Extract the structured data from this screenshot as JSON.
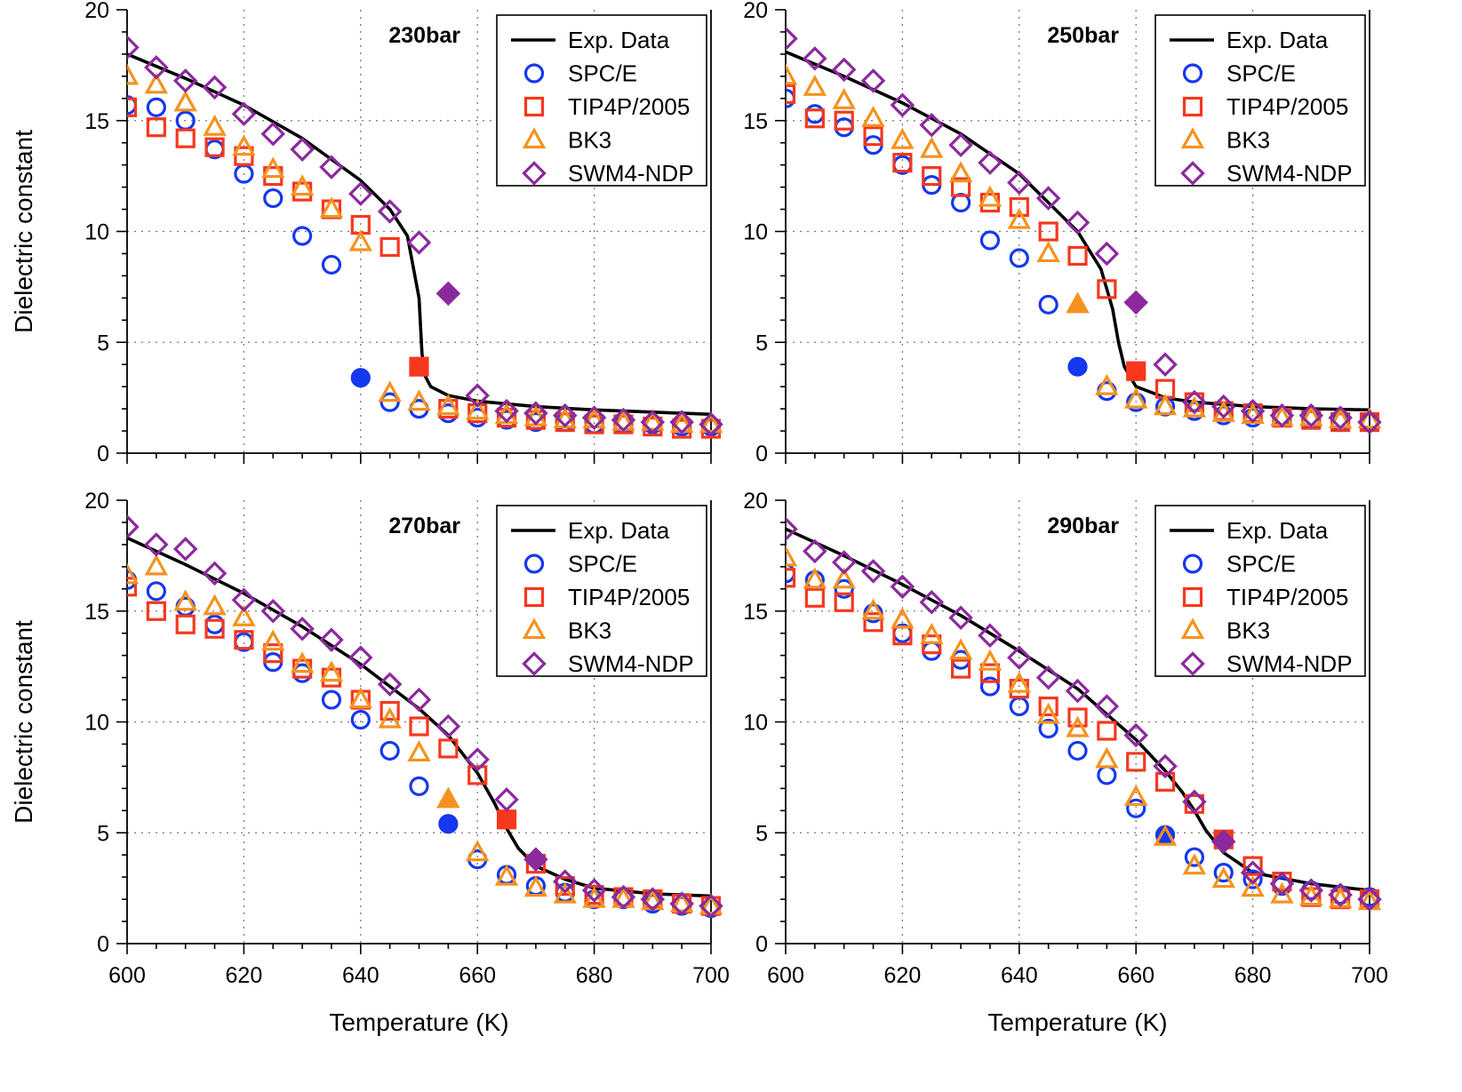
{
  "figure": {
    "x_axis_title": "Temperature (K)",
    "y_axis_title": "Dielectric constant"
  },
  "legend": {
    "entries": [
      {
        "key": "exp",
        "label": "Exp. Data"
      },
      {
        "key": "spce",
        "label": "SPC/E"
      },
      {
        "key": "tip4p",
        "label": "TIP4P/2005"
      },
      {
        "key": "bk3",
        "label": "BK3"
      },
      {
        "key": "swm4",
        "label": "SWM4-NDP"
      }
    ]
  },
  "colors": {
    "exp": "#000000",
    "spce": "#1538f0",
    "tip4p": "#f5381e",
    "bk3": "#f5921e",
    "swm4": "#8b2a9c"
  },
  "chart_data": [
    {
      "type": "scatter",
      "title": "230bar",
      "xlabel": "Temperature (K)",
      "ylabel": "Dielectric constant",
      "xlim": [
        600,
        700
      ],
      "ylim": [
        0,
        20
      ],
      "xticks": [
        600,
        620,
        640,
        660,
        680,
        700
      ],
      "yticks": [
        0,
        5,
        10,
        15,
        20
      ],
      "exp_line": {
        "x": [
          600,
          610,
          620,
          630,
          640,
          645,
          648,
          650,
          650.5,
          651,
          652,
          655,
          660,
          670,
          680,
          690,
          700
        ],
        "y": [
          18.0,
          16.9,
          15.7,
          14.2,
          12.3,
          11.0,
          9.8,
          7.0,
          4.5,
          3.5,
          3.0,
          2.6,
          2.35,
          2.1,
          1.95,
          1.85,
          1.75
        ]
      },
      "series": [
        {
          "name": "SPC/E",
          "x": [
            600,
            605,
            610,
            615,
            620,
            625,
            630,
            635,
            640,
            645,
            650,
            655,
            660,
            665,
            670,
            675,
            680,
            685,
            690,
            695,
            700
          ],
          "y": [
            15.7,
            15.6,
            15.0,
            13.7,
            12.6,
            11.5,
            9.8,
            8.5,
            3.4,
            2.3,
            2.0,
            1.8,
            1.6,
            1.5,
            1.4,
            1.4,
            1.3,
            1.3,
            1.3,
            1.2,
            1.2
          ],
          "filled_x": [
            640
          ]
        },
        {
          "name": "TIP4P/2005",
          "x": [
            600,
            605,
            610,
            615,
            620,
            625,
            630,
            635,
            640,
            645,
            650,
            655,
            660,
            665,
            670,
            675,
            680,
            685,
            690,
            695,
            700
          ],
          "y": [
            15.6,
            14.7,
            14.2,
            13.8,
            13.4,
            12.5,
            11.8,
            11.0,
            10.3,
            9.3,
            3.9,
            2.0,
            1.8,
            1.6,
            1.5,
            1.4,
            1.3,
            1.3,
            1.2,
            1.1,
            1.1
          ],
          "filled_x": [
            650
          ]
        },
        {
          "name": "BK3",
          "x": [
            600,
            605,
            610,
            615,
            620,
            625,
            630,
            635,
            640,
            645,
            650,
            655,
            660,
            665,
            670,
            675,
            680,
            685,
            690,
            695,
            700
          ],
          "y": [
            17.0,
            16.6,
            15.8,
            14.7,
            13.8,
            12.8,
            12.0,
            11.0,
            9.5,
            2.7,
            2.3,
            2.1,
            1.9,
            1.7,
            1.6,
            1.5,
            1.5,
            1.4,
            1.4,
            1.3,
            1.3
          ],
          "filled_x": []
        },
        {
          "name": "SWM4-NDP",
          "x": [
            600,
            605,
            610,
            615,
            620,
            625,
            630,
            635,
            640,
            645,
            650,
            655,
            660,
            665,
            670,
            675,
            680,
            685,
            690,
            695,
            700
          ],
          "y": [
            18.3,
            17.4,
            16.8,
            16.5,
            15.3,
            14.4,
            13.7,
            12.9,
            11.7,
            10.9,
            9.5,
            7.2,
            2.6,
            1.9,
            1.8,
            1.7,
            1.6,
            1.5,
            1.4,
            1.4,
            1.3
          ],
          "filled_x": [
            655
          ]
        }
      ]
    },
    {
      "type": "scatter",
      "title": "250bar",
      "xlabel": "Temperature (K)",
      "ylabel": "Dielectric constant",
      "xlim": [
        600,
        700
      ],
      "ylim": [
        0,
        20
      ],
      "xticks": [
        600,
        620,
        640,
        660,
        680,
        700
      ],
      "yticks": [
        0,
        5,
        10,
        15,
        20
      ],
      "exp_line": {
        "x": [
          600,
          610,
          620,
          630,
          640,
          645,
          650,
          654,
          656,
          657,
          658,
          660,
          665,
          670,
          680,
          690,
          700
        ],
        "y": [
          18.1,
          17.0,
          15.8,
          14.4,
          12.6,
          11.3,
          10.0,
          8.3,
          6.5,
          5.0,
          3.9,
          3.0,
          2.5,
          2.3,
          2.1,
          2.0,
          1.95
        ]
      },
      "series": [
        {
          "name": "SPC/E",
          "x": [
            600,
            605,
            610,
            615,
            620,
            625,
            630,
            635,
            640,
            645,
            650,
            655,
            660,
            665,
            670,
            675,
            680,
            685,
            690,
            695,
            700
          ],
          "y": [
            16.0,
            15.3,
            14.7,
            13.9,
            13.0,
            12.1,
            11.3,
            9.6,
            8.8,
            6.7,
            3.9,
            2.8,
            2.3,
            2.1,
            1.9,
            1.7,
            1.6,
            1.6,
            1.5,
            1.4,
            1.4
          ],
          "filled_x": [
            650
          ]
        },
        {
          "name": "TIP4P/2005",
          "x": [
            600,
            605,
            610,
            615,
            620,
            625,
            630,
            635,
            640,
            645,
            650,
            655,
            660,
            665,
            670,
            675,
            680,
            685,
            690,
            695,
            700
          ],
          "y": [
            16.2,
            15.1,
            15.0,
            14.3,
            13.1,
            12.5,
            12.0,
            11.3,
            11.1,
            10.0,
            8.9,
            7.4,
            3.7,
            2.9,
            2.3,
            1.9,
            1.8,
            1.6,
            1.5,
            1.4,
            1.4
          ],
          "filled_x": [
            660
          ]
        },
        {
          "name": "BK3",
          "x": [
            600,
            605,
            610,
            615,
            620,
            625,
            630,
            635,
            640,
            645,
            650,
            655,
            660,
            665,
            670,
            675,
            680,
            685,
            690,
            695,
            700
          ],
          "y": [
            17.0,
            16.5,
            15.9,
            15.1,
            14.1,
            13.7,
            12.6,
            11.5,
            10.5,
            9.0,
            6.7,
            3.0,
            2.4,
            2.1,
            2.0,
            1.8,
            1.7,
            1.6,
            1.6,
            1.5,
            1.5
          ],
          "filled_x": [
            650
          ]
        },
        {
          "name": "SWM4-NDP",
          "x": [
            600,
            605,
            610,
            615,
            620,
            625,
            630,
            635,
            640,
            645,
            650,
            655,
            660,
            665,
            670,
            675,
            680,
            685,
            690,
            695,
            700
          ],
          "y": [
            18.7,
            17.8,
            17.3,
            16.8,
            15.7,
            14.8,
            13.9,
            13.1,
            12.2,
            11.5,
            10.4,
            9.0,
            6.8,
            4.0,
            2.3,
            2.1,
            1.9,
            1.7,
            1.7,
            1.6,
            1.4
          ],
          "filled_x": [
            660
          ]
        }
      ]
    },
    {
      "type": "scatter",
      "title": "270bar",
      "xlabel": "Temperature (K)",
      "ylabel": "Dielectric constant",
      "xlim": [
        600,
        700
      ],
      "ylim": [
        0,
        20
      ],
      "xticks": [
        600,
        620,
        640,
        660,
        680,
        700
      ],
      "yticks": [
        0,
        5,
        10,
        15,
        20
      ],
      "exp_line": {
        "x": [
          600,
          610,
          620,
          630,
          640,
          650,
          655,
          660,
          663,
          665,
          667,
          670,
          675,
          680,
          690,
          700
        ],
        "y": [
          18.3,
          17.1,
          15.8,
          14.3,
          12.6,
          10.6,
          9.4,
          7.7,
          6.3,
          5.2,
          4.3,
          3.5,
          2.9,
          2.5,
          2.25,
          2.15
        ]
      },
      "series": [
        {
          "name": "SPC/E",
          "x": [
            600,
            605,
            610,
            615,
            620,
            625,
            630,
            635,
            640,
            645,
            650,
            655,
            660,
            665,
            670,
            675,
            680,
            685,
            690,
            695,
            700
          ],
          "y": [
            16.4,
            15.9,
            15.2,
            14.4,
            13.6,
            12.7,
            12.2,
            11.0,
            10.1,
            8.7,
            7.1,
            5.4,
            3.8,
            3.1,
            2.6,
            2.3,
            2.0,
            2.0,
            1.8,
            1.7,
            1.6
          ],
          "filled_x": [
            655
          ]
        },
        {
          "name": "TIP4P/2005",
          "x": [
            600,
            605,
            610,
            615,
            620,
            625,
            630,
            635,
            640,
            645,
            650,
            655,
            660,
            665,
            670,
            675,
            680,
            685,
            690,
            695,
            700
          ],
          "y": [
            16.1,
            15.0,
            14.4,
            14.2,
            13.7,
            13.1,
            12.4,
            12.0,
            11.0,
            10.5,
            9.8,
            8.8,
            7.6,
            5.6,
            3.6,
            2.6,
            2.2,
            2.1,
            2.0,
            1.8,
            1.7
          ],
          "filled_x": [
            665
          ]
        },
        {
          "name": "BK3",
          "x": [
            600,
            605,
            610,
            615,
            620,
            625,
            630,
            635,
            640,
            645,
            650,
            655,
            660,
            665,
            670,
            675,
            680,
            685,
            690,
            695,
            700
          ],
          "y": [
            16.6,
            17.0,
            15.4,
            15.2,
            14.7,
            13.6,
            12.6,
            12.2,
            11.0,
            10.1,
            8.6,
            6.5,
            4.1,
            3.0,
            2.5,
            2.2,
            2.0,
            2.0,
            1.9,
            1.8,
            1.7
          ],
          "filled_x": [
            655
          ]
        },
        {
          "name": "SWM4-NDP",
          "x": [
            600,
            605,
            610,
            615,
            620,
            625,
            630,
            635,
            640,
            645,
            650,
            655,
            660,
            665,
            670,
            675,
            680,
            685,
            690,
            695,
            700
          ],
          "y": [
            18.8,
            18.0,
            17.8,
            16.7,
            15.5,
            15.0,
            14.2,
            13.7,
            12.9,
            11.7,
            11.0,
            9.8,
            8.3,
            6.5,
            3.8,
            2.8,
            2.4,
            2.1,
            2.0,
            1.8,
            1.7
          ],
          "filled_x": [
            670
          ]
        }
      ]
    },
    {
      "type": "scatter",
      "title": "290bar",
      "xlabel": "Temperature (K)",
      "ylabel": "Dielectric constant",
      "xlim": [
        600,
        700
      ],
      "ylim": [
        0,
        20
      ],
      "xticks": [
        600,
        620,
        640,
        660,
        680,
        700
      ],
      "yticks": [
        0,
        5,
        10,
        15,
        20
      ],
      "exp_line": {
        "x": [
          600,
          610,
          620,
          630,
          640,
          650,
          660,
          665,
          668,
          670,
          672,
          675,
          680,
          690,
          700
        ],
        "y": [
          18.7,
          17.5,
          16.2,
          14.8,
          13.2,
          11.5,
          9.2,
          7.8,
          6.8,
          6.0,
          5.1,
          4.1,
          3.2,
          2.7,
          2.4
        ]
      },
      "series": [
        {
          "name": "SPC/E",
          "x": [
            600,
            605,
            610,
            615,
            620,
            625,
            630,
            635,
            640,
            645,
            650,
            655,
            660,
            665,
            670,
            675,
            680,
            685,
            690,
            695,
            700
          ],
          "y": [
            16.7,
            16.4,
            16.0,
            14.9,
            14.0,
            13.2,
            12.8,
            11.6,
            10.7,
            9.7,
            8.7,
            7.6,
            6.1,
            4.9,
            3.9,
            3.2,
            2.9,
            2.6,
            2.4,
            2.2,
            2.1
          ],
          "filled_x": [
            665
          ]
        },
        {
          "name": "TIP4P/2005",
          "x": [
            600,
            605,
            610,
            615,
            620,
            625,
            630,
            635,
            640,
            645,
            650,
            655,
            660,
            665,
            670,
            675,
            680,
            685,
            690,
            695,
            700
          ],
          "y": [
            16.5,
            15.6,
            15.4,
            14.5,
            13.9,
            13.5,
            12.4,
            12.2,
            11.5,
            10.7,
            10.2,
            9.6,
            8.2,
            7.3,
            6.3,
            4.7,
            3.5,
            2.8,
            2.1,
            2.0,
            2.0
          ],
          "filled_x": [
            675
          ]
        },
        {
          "name": "BK3",
          "x": [
            600,
            605,
            610,
            615,
            620,
            625,
            630,
            635,
            640,
            645,
            650,
            655,
            660,
            665,
            670,
            675,
            680,
            685,
            690,
            695,
            700
          ],
          "y": [
            17.4,
            16.4,
            16.4,
            15.0,
            14.6,
            13.9,
            13.2,
            12.7,
            11.7,
            10.3,
            9.7,
            8.3,
            6.6,
            4.8,
            3.5,
            2.9,
            2.5,
            2.2,
            2.1,
            2.0,
            1.9
          ],
          "filled_x": []
        },
        {
          "name": "SWM4-NDP",
          "x": [
            600,
            605,
            610,
            615,
            620,
            625,
            630,
            635,
            640,
            645,
            650,
            655,
            660,
            665,
            670,
            675,
            680,
            685,
            690,
            695,
            700
          ],
          "y": [
            18.7,
            17.7,
            17.2,
            16.8,
            16.1,
            15.4,
            14.7,
            13.9,
            12.9,
            12.0,
            11.4,
            10.7,
            9.4,
            8.0,
            6.4,
            4.6,
            3.2,
            2.7,
            2.4,
            2.2,
            2.0
          ],
          "filled_x": [
            675
          ]
        }
      ]
    }
  ]
}
